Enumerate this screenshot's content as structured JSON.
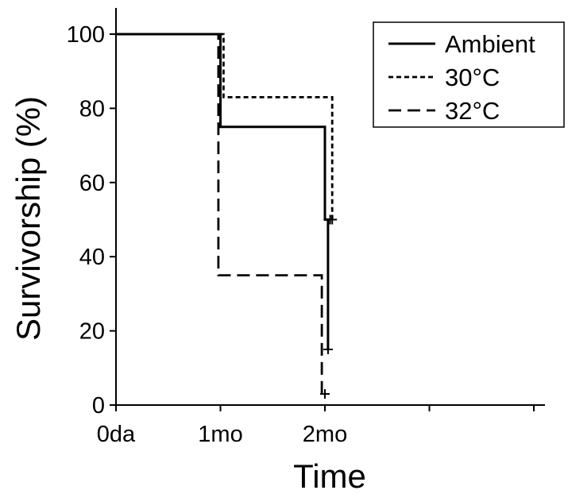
{
  "chart_data": {
    "type": "line",
    "subtype": "step (Kaplan-Meier survivorship)",
    "title": "",
    "xlabel": "Time",
    "ylabel": "Survivorship (%)",
    "ylim": [
      0,
      100
    ],
    "yticks": [
      0,
      20,
      40,
      60,
      80,
      100
    ],
    "x_ticks": [
      {
        "value": 0,
        "label": "0da"
      },
      {
        "value": 1,
        "label": "1mo"
      },
      {
        "value": 2,
        "label": "2mo"
      },
      {
        "value": 3,
        "label": ""
      },
      {
        "value": 4,
        "label": ""
      }
    ],
    "xlim": [
      0,
      4.1
    ],
    "grid": false,
    "legend_position": "top-right",
    "series": [
      {
        "name": "Ambient",
        "line_style": "solid",
        "steps": [
          [
            0,
            100
          ],
          [
            1.0,
            100
          ],
          [
            1.0,
            75
          ],
          [
            2.0,
            75
          ],
          [
            2.0,
            50
          ],
          [
            2.03,
            50
          ],
          [
            2.03,
            15
          ]
        ],
        "censor_marks": [
          [
            0,
            100
          ],
          [
            2.05,
            50
          ],
          [
            2.03,
            15
          ]
        ]
      },
      {
        "name": "30°C",
        "line_style": "dotted",
        "steps": [
          [
            0,
            100
          ],
          [
            1.03,
            100
          ],
          [
            1.03,
            83
          ],
          [
            2.07,
            83
          ],
          [
            2.07,
            50
          ]
        ],
        "censor_marks": [
          [
            2.07,
            50
          ]
        ]
      },
      {
        "name": "32°C",
        "line_style": "dashed",
        "steps": [
          [
            0,
            100
          ],
          [
            0.98,
            100
          ],
          [
            0.98,
            35
          ],
          [
            1.97,
            35
          ],
          [
            1.97,
            3
          ]
        ],
        "censor_marks": [
          [
            2.0,
            3
          ]
        ]
      }
    ]
  },
  "legend": {
    "entries": [
      "Ambient",
      "30°C",
      "32°C"
    ]
  }
}
